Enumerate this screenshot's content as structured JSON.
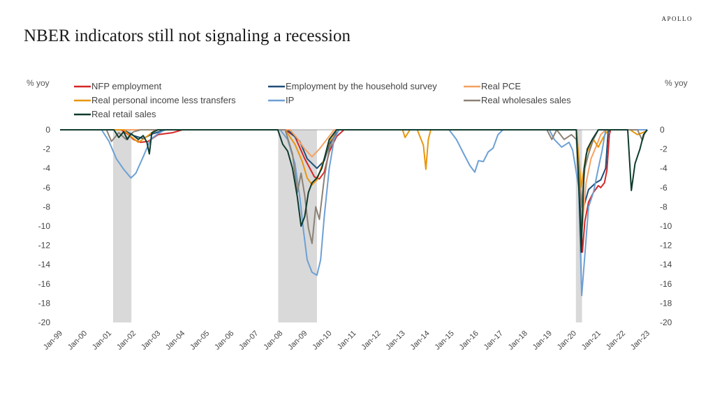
{
  "brand": "APOLLO",
  "title": "NBER indicators still not signaling a recession",
  "chart_data": {
    "type": "line",
    "ylabel_left": "% yoy",
    "ylabel_right": "% yoy",
    "ylim": [
      -20,
      0
    ],
    "yticks": [
      0,
      -2,
      -4,
      -6,
      -8,
      -10,
      -12,
      -14,
      -16,
      -18,
      -20
    ],
    "xlim": [
      1999.0,
      2023.0
    ],
    "x_ticks": [
      {
        "x": 1999,
        "label": "Jan-99"
      },
      {
        "x": 2000,
        "label": "Jan-00"
      },
      {
        "x": 2001,
        "label": "Jan-01"
      },
      {
        "x": 2002,
        "label": "Jan-02"
      },
      {
        "x": 2003,
        "label": "Jan-03"
      },
      {
        "x": 2004,
        "label": "Jan-04"
      },
      {
        "x": 2005,
        "label": "Jan-05"
      },
      {
        "x": 2006,
        "label": "Jan-06"
      },
      {
        "x": 2007,
        "label": "Jan-07"
      },
      {
        "x": 2008,
        "label": "Jan-08"
      },
      {
        "x": 2009,
        "label": "Jan-09"
      },
      {
        "x": 2010,
        "label": "Jan-10"
      },
      {
        "x": 2011,
        "label": "Jan-11"
      },
      {
        "x": 2012,
        "label": "Jan-12"
      },
      {
        "x": 2013,
        "label": "Jan-13"
      },
      {
        "x": 2014,
        "label": "Jan-14"
      },
      {
        "x": 2015,
        "label": "Jan-15"
      },
      {
        "x": 2016,
        "label": "Jan-16"
      },
      {
        "x": 2017,
        "label": "Jan-17"
      },
      {
        "x": 2018,
        "label": "Jan-18"
      },
      {
        "x": 2019,
        "label": "Jan-19"
      },
      {
        "x": 2020,
        "label": "Jan-20"
      },
      {
        "x": 2021,
        "label": "Jan-21"
      },
      {
        "x": 2022,
        "label": "Jan-22"
      },
      {
        "x": 2023,
        "label": "Jan-23"
      }
    ],
    "recessions": [
      {
        "start": "Mar-01",
        "end": "Nov-01"
      },
      {
        "start": "Dec-07",
        "end": "Jun-09"
      },
      {
        "start": "Feb-20",
        "end": "Apr-20"
      }
    ],
    "recession_color": "#d9d9d9",
    "grid": false,
    "legend_position": "top",
    "series": [
      {
        "name": "NFP employment",
        "color": "#d62728",
        "points": [
          [
            1999.0,
            0
          ],
          [
            2001.5,
            0
          ],
          [
            2001.8,
            -0.5
          ],
          [
            2002.0,
            -1.0
          ],
          [
            2002.3,
            -1.3
          ],
          [
            2002.6,
            -1.2
          ],
          [
            2003.0,
            -0.5
          ],
          [
            2003.3,
            -0.4
          ],
          [
            2003.6,
            -0.3
          ],
          [
            2004.0,
            0
          ],
          [
            2008.2,
            0
          ],
          [
            2008.6,
            -0.7
          ],
          [
            2009.0,
            -3.0
          ],
          [
            2009.4,
            -4.9
          ],
          [
            2009.6,
            -5.1
          ],
          [
            2009.8,
            -4.4
          ],
          [
            2010.0,
            -2.3
          ],
          [
            2010.3,
            -0.7
          ],
          [
            2010.6,
            0
          ],
          [
            2020.1,
            0
          ],
          [
            2020.25,
            -6.5
          ],
          [
            2020.35,
            -12.7
          ],
          [
            2020.45,
            -9.5
          ],
          [
            2020.6,
            -7.5
          ],
          [
            2020.8,
            -6.5
          ],
          [
            2021.0,
            -5.8
          ],
          [
            2021.1,
            -6.0
          ],
          [
            2021.25,
            -5.5
          ],
          [
            2021.35,
            -4.2
          ],
          [
            2021.45,
            -0.5
          ],
          [
            2021.5,
            0
          ],
          [
            2023.0,
            0
          ]
        ]
      },
      {
        "name": "Employment by the household survey",
        "color": "#1f4e79",
        "points": [
          [
            1999.0,
            0
          ],
          [
            2001.6,
            0
          ],
          [
            2002.0,
            -0.6
          ],
          [
            2002.4,
            -0.9
          ],
          [
            2002.8,
            -0.4
          ],
          [
            2003.3,
            0
          ],
          [
            2008.3,
            0
          ],
          [
            2008.8,
            -1.2
          ],
          [
            2009.1,
            -3.0
          ],
          [
            2009.5,
            -4.0
          ],
          [
            2009.8,
            -3.2
          ],
          [
            2010.0,
            -1.5
          ],
          [
            2010.4,
            0
          ],
          [
            2020.1,
            0
          ],
          [
            2020.3,
            -10.5
          ],
          [
            2020.4,
            -8.0
          ],
          [
            2020.6,
            -6.2
          ],
          [
            2020.9,
            -5.5
          ],
          [
            2021.1,
            -5.2
          ],
          [
            2021.3,
            -4.0
          ],
          [
            2021.4,
            -0.2
          ],
          [
            2021.5,
            0
          ],
          [
            2023.0,
            0
          ]
        ]
      },
      {
        "name": "Real PCE",
        "color": "#f4a261",
        "points": [
          [
            1999.0,
            0
          ],
          [
            2008.4,
            0
          ],
          [
            2008.7,
            -0.9
          ],
          [
            2009.0,
            -2.0
          ],
          [
            2009.3,
            -2.8
          ],
          [
            2009.6,
            -2.0
          ],
          [
            2009.9,
            -1.0
          ],
          [
            2010.2,
            0
          ],
          [
            2020.1,
            0
          ],
          [
            2020.25,
            -4.5
          ],
          [
            2020.35,
            -10.0
          ],
          [
            2020.5,
            -5.5
          ],
          [
            2020.7,
            -3.0
          ],
          [
            2020.9,
            -1.8
          ],
          [
            2021.1,
            -0.5
          ],
          [
            2021.3,
            0
          ],
          [
            2023.0,
            0
          ]
        ]
      },
      {
        "name": "Real personal income less transfers",
        "color": "#e8960c",
        "points": [
          [
            1999.0,
            0
          ],
          [
            2001.6,
            0
          ],
          [
            2001.9,
            -0.7
          ],
          [
            2002.2,
            -1.3
          ],
          [
            2002.5,
            -0.8
          ],
          [
            2002.9,
            0
          ],
          [
            2008.2,
            0
          ],
          [
            2008.6,
            -1.5
          ],
          [
            2008.9,
            -3.3
          ],
          [
            2009.1,
            -5.0
          ],
          [
            2009.3,
            -5.7
          ],
          [
            2009.5,
            -5.2
          ],
          [
            2009.8,
            -3.0
          ],
          [
            2010.0,
            -1.2
          ],
          [
            2010.3,
            0
          ],
          [
            2013.0,
            0
          ],
          [
            2013.1,
            -0.8
          ],
          [
            2013.3,
            0
          ],
          [
            2013.6,
            0
          ],
          [
            2013.85,
            -1.6
          ],
          [
            2013.95,
            -4.1
          ],
          [
            2014.05,
            -1.0
          ],
          [
            2014.15,
            0
          ],
          [
            2020.1,
            0
          ],
          [
            2020.3,
            -6.0
          ],
          [
            2020.5,
            -2.5
          ],
          [
            2020.8,
            -1.0
          ],
          [
            2021.0,
            -1.8
          ],
          [
            2021.2,
            -0.8
          ],
          [
            2021.4,
            0
          ],
          [
            2022.3,
            0
          ],
          [
            2022.6,
            -0.5
          ],
          [
            2022.9,
            -0.2
          ],
          [
            2023.0,
            0
          ]
        ]
      },
      {
        "name": "IP",
        "color": "#6ca0d4",
        "points": [
          [
            1999.0,
            0
          ],
          [
            2000.7,
            0
          ],
          [
            2001.0,
            -1.2
          ],
          [
            2001.3,
            -3.0
          ],
          [
            2001.6,
            -4.1
          ],
          [
            2001.9,
            -5.0
          ],
          [
            2002.1,
            -4.5
          ],
          [
            2002.4,
            -2.8
          ],
          [
            2002.7,
            -1.0
          ],
          [
            2003.0,
            -0.4
          ],
          [
            2003.3,
            0
          ],
          [
            2008.0,
            0
          ],
          [
            2008.3,
            -1.0
          ],
          [
            2008.6,
            -3.5
          ],
          [
            2008.8,
            -7.0
          ],
          [
            2008.95,
            -10.5
          ],
          [
            2009.1,
            -13.5
          ],
          [
            2009.3,
            -14.8
          ],
          [
            2009.5,
            -15.1
          ],
          [
            2009.65,
            -13.5
          ],
          [
            2009.8,
            -9.0
          ],
          [
            2010.0,
            -4.0
          ],
          [
            2010.2,
            -1.0
          ],
          [
            2010.4,
            0
          ],
          [
            2014.9,
            0
          ],
          [
            2015.2,
            -1.0
          ],
          [
            2015.5,
            -2.5
          ],
          [
            2015.75,
            -3.7
          ],
          [
            2015.95,
            -4.4
          ],
          [
            2016.1,
            -3.2
          ],
          [
            2016.3,
            -3.3
          ],
          [
            2016.5,
            -2.3
          ],
          [
            2016.7,
            -1.9
          ],
          [
            2016.9,
            -0.5
          ],
          [
            2017.1,
            0
          ],
          [
            2019.0,
            0
          ],
          [
            2019.2,
            -1.0
          ],
          [
            2019.5,
            -1.8
          ],
          [
            2019.8,
            -1.3
          ],
          [
            2019.95,
            -2.1
          ],
          [
            2020.2,
            -6.0
          ],
          [
            2020.32,
            -17.2
          ],
          [
            2020.45,
            -13.0
          ],
          [
            2020.6,
            -8.0
          ],
          [
            2020.8,
            -6.5
          ],
          [
            2021.0,
            -4.0
          ],
          [
            2021.15,
            -2.2
          ],
          [
            2021.3,
            0
          ],
          [
            2023.0,
            0
          ]
        ]
      },
      {
        "name": "Real wholesales sales",
        "color": "#8c8275",
        "points": [
          [
            1999.0,
            0
          ],
          [
            2000.9,
            0
          ],
          [
            2001.1,
            -1.2
          ],
          [
            2001.4,
            -0.3
          ],
          [
            2001.7,
            -1.0
          ],
          [
            2002.0,
            -0.2
          ],
          [
            2002.3,
            0
          ],
          [
            2008.2,
            0
          ],
          [
            2008.5,
            -2.5
          ],
          [
            2008.7,
            -6.5
          ],
          [
            2008.85,
            -4.5
          ],
          [
            2009.0,
            -6.8
          ],
          [
            2009.15,
            -10.2
          ],
          [
            2009.3,
            -11.8
          ],
          [
            2009.45,
            -8.0
          ],
          [
            2009.6,
            -9.3
          ],
          [
            2009.8,
            -5.0
          ],
          [
            2010.0,
            -2.0
          ],
          [
            2010.3,
            0
          ],
          [
            2018.9,
            0
          ],
          [
            2019.1,
            -1.0
          ],
          [
            2019.3,
            0
          ],
          [
            2019.6,
            -1.0
          ],
          [
            2019.9,
            -0.5
          ],
          [
            2020.1,
            -1.0
          ],
          [
            2020.3,
            -8.0
          ],
          [
            2020.45,
            -4.0
          ],
          [
            2020.6,
            -2.5
          ],
          [
            2020.8,
            -1.0
          ],
          [
            2021.0,
            0
          ],
          [
            2022.6,
            0
          ],
          [
            2022.8,
            -1.1
          ],
          [
            2022.9,
            -0.3
          ],
          [
            2023.0,
            0
          ]
        ]
      },
      {
        "name": "Real retail sales",
        "color": "#0e3b2e",
        "points": [
          [
            1999.0,
            0
          ],
          [
            2001.2,
            0
          ],
          [
            2001.4,
            -0.8
          ],
          [
            2001.6,
            -0.2
          ],
          [
            2001.75,
            -1.0
          ],
          [
            2001.9,
            -0.4
          ],
          [
            2002.2,
            -1.0
          ],
          [
            2002.4,
            -0.6
          ],
          [
            2002.55,
            -1.3
          ],
          [
            2002.65,
            -2.5
          ],
          [
            2002.75,
            -0.3
          ],
          [
            2003.0,
            0
          ],
          [
            2007.9,
            0
          ],
          [
            2008.1,
            -1.5
          ],
          [
            2008.3,
            -2.2
          ],
          [
            2008.5,
            -4.0
          ],
          [
            2008.7,
            -7.0
          ],
          [
            2008.85,
            -10.0
          ],
          [
            2009.0,
            -9.0
          ],
          [
            2009.15,
            -6.5
          ],
          [
            2009.3,
            -5.5
          ],
          [
            2009.5,
            -5.0
          ],
          [
            2009.7,
            -4.0
          ],
          [
            2009.85,
            -2.5
          ],
          [
            2010.0,
            -1.0
          ],
          [
            2010.3,
            0
          ],
          [
            2020.1,
            0
          ],
          [
            2020.22,
            -7.0
          ],
          [
            2020.3,
            -12.7
          ],
          [
            2020.42,
            -4.0
          ],
          [
            2020.55,
            -2.0
          ],
          [
            2020.75,
            -1.0
          ],
          [
            2021.0,
            0
          ],
          [
            2022.2,
            0
          ],
          [
            2022.35,
            -6.3
          ],
          [
            2022.5,
            -3.5
          ],
          [
            2022.7,
            -2.0
          ],
          [
            2022.85,
            -0.5
          ],
          [
            2023.0,
            0
          ]
        ]
      }
    ]
  }
}
